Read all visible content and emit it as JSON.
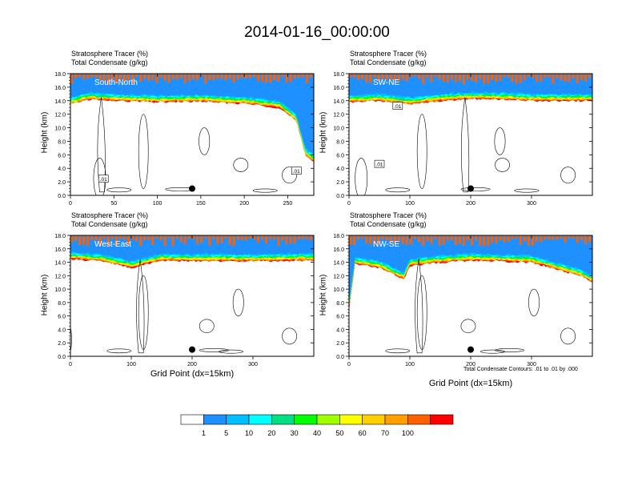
{
  "title": "2014-01-16_00:00:00",
  "panels": [
    {
      "name": "South-North",
      "label": "South-North",
      "line1": "Stratosphere Tracer   (%)",
      "line2": "Total Condensate   (g/kg)",
      "xmax": 280,
      "xticks": [
        0,
        50,
        100,
        150,
        200,
        250
      ],
      "show_xlabel": false,
      "dot_x": 140,
      "dot_y": 1.0,
      "contour_labels": [
        {
          "text": ".01",
          "x": 38,
          "y": 2.4
        },
        {
          "text": ".01",
          "x": 260,
          "y": 3.6
        }
      ]
    },
    {
      "name": "SW-NE",
      "label": "SW-NE",
      "line1": "Stratosphere Tracer   (%)",
      "line2": "Total Condensate   (g/kg)",
      "xmax": 400,
      "xticks": [
        0,
        100,
        200,
        300
      ],
      "show_xlabel": false,
      "dot_x": 200,
      "dot_y": 1.0,
      "contour_labels": [
        {
          "text": ".01",
          "x": 50,
          "y": 4.6
        },
        {
          "text": ".01",
          "x": 80,
          "y": 13.2
        }
      ]
    },
    {
      "name": "West-East",
      "label": "West-East",
      "line1": "Stratosphere Tracer   (%)",
      "line2": "Total Condensate   (g/kg)",
      "xmax": 400,
      "xticks": [
        0,
        100,
        200,
        300
      ],
      "show_xlabel": true,
      "dot_x": 200,
      "dot_y": 1.0,
      "contour_labels": []
    },
    {
      "name": "NW-SE",
      "label": "NW-SE",
      "line1": "Stratosphere Tracer   (%)",
      "line2": "Total Condensate   (g/kg)",
      "xmax": 400,
      "xticks": [
        0,
        100,
        200,
        300
      ],
      "show_xlabel": true,
      "dot_x": 200,
      "dot_y": 1.0,
      "contour_labels": []
    }
  ],
  "ylabel": "Height (km)",
  "xlabel": "Grid Point (dx=15km)",
  "yticks": [
    "0.0",
    "2.0",
    "4.0",
    "6.0",
    "8.0",
    "10.0",
    "12.0",
    "14.0",
    "16.0",
    "18.0"
  ],
  "footnote": "Total Condensate Contours: .01 to .01 by .000",
  "chart_data": {
    "type": "heatmap",
    "variable": "Stratosphere Tracer (%) with Total Condensate (g/kg) contours",
    "ylim": [
      0,
      18
    ],
    "colorbar": {
      "levels": [
        "1",
        "5",
        "10",
        "20",
        "30",
        "40",
        "50",
        "60",
        "70",
        "100"
      ],
      "colors": [
        "#ffffff",
        "#1e90ff",
        "#00bfff",
        "#00ffff",
        "#00e080",
        "#00ff00",
        "#a0ff00",
        "#ffff00",
        "#ffd000",
        "#ffa000",
        "#ff6000",
        "#ff0000"
      ]
    },
    "tracer_top_km": {
      "South-North": {
        "x": [
          0,
          20,
          50,
          100,
          150,
          200,
          240,
          260,
          270,
          280
        ],
        "bottom": [
          14.5,
          15.2,
          15.0,
          14.8,
          14.9,
          14.6,
          14.0,
          12.0,
          7.0,
          6.0
        ]
      },
      "SW-NE": {
        "x": [
          0,
          50,
          100,
          150,
          200,
          250,
          300,
          400
        ],
        "bottom": [
          14.8,
          15.0,
          14.5,
          15.0,
          15.3,
          15.2,
          15.0,
          15.0
        ]
      },
      "West-East": {
        "x": [
          0,
          50,
          100,
          150,
          200,
          300,
          400
        ],
        "bottom": [
          15.5,
          15.2,
          14.2,
          15.3,
          15.2,
          15.2,
          15.3
        ]
      },
      "NW-SE": {
        "x": [
          0,
          10,
          50,
          90,
          100,
          150,
          200,
          300,
          380,
          400
        ],
        "bottom": [
          8.0,
          14.8,
          14.2,
          12.5,
          14.5,
          15.0,
          15.3,
          15.0,
          13.0,
          12.0
        ]
      }
    }
  }
}
